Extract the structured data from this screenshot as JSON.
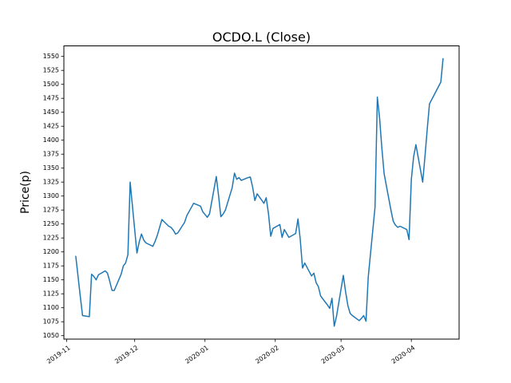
{
  "figure": {
    "title": "OCDO.L (Close)",
    "ylabel": "Price(p)"
  },
  "chart_data": {
    "type": "line",
    "title": "OCDO.L (Close)",
    "xlabel": "",
    "ylabel": "Price(p)",
    "series_name": "Close",
    "line_color": "#1f77b4",
    "background_color": "#ffffff",
    "grid": false,
    "legend_position": "none",
    "ylim": [
      1044,
      1569
    ],
    "yticks": [
      1050,
      1075,
      1100,
      1125,
      1150,
      1175,
      1200,
      1225,
      1250,
      1275,
      1300,
      1325,
      1350,
      1375,
      1400,
      1425,
      1450,
      1475,
      1500,
      1525,
      1550
    ],
    "xticks": [
      {
        "date": "2019-11-01",
        "label": "2019-11"
      },
      {
        "date": "2019-12-01",
        "label": "2019-12"
      },
      {
        "date": "2020-01-01",
        "label": "2020-01"
      },
      {
        "date": "2020-02-01",
        "label": "2020-02"
      },
      {
        "date": "2020-03-01",
        "label": "2020-03"
      },
      {
        "date": "2020-04-01",
        "label": "2020-04"
      }
    ],
    "x": [
      "2019-11-05",
      "2019-11-06",
      "2019-11-07",
      "2019-11-08",
      "2019-11-11",
      "2019-11-12",
      "2019-11-13",
      "2019-11-14",
      "2019-11-15",
      "2019-11-18",
      "2019-11-19",
      "2019-11-20",
      "2019-11-21",
      "2019-11-22",
      "2019-11-25",
      "2019-11-26",
      "2019-11-27",
      "2019-11-28",
      "2019-11-29",
      "2019-12-02",
      "2019-12-03",
      "2019-12-04",
      "2019-12-05",
      "2019-12-06",
      "2019-12-09",
      "2019-12-10",
      "2019-12-11",
      "2019-12-12",
      "2019-12-13",
      "2019-12-16",
      "2019-12-17",
      "2019-12-18",
      "2019-12-19",
      "2019-12-20",
      "2019-12-23",
      "2019-12-24",
      "2019-12-27",
      "2019-12-30",
      "2019-12-31",
      "2020-01-02",
      "2020-01-03",
      "2020-01-06",
      "2020-01-07",
      "2020-01-08",
      "2020-01-09",
      "2020-01-10",
      "2020-01-13",
      "2020-01-14",
      "2020-01-15",
      "2020-01-16",
      "2020-01-17",
      "2020-01-20",
      "2020-01-21",
      "2020-01-22",
      "2020-01-23",
      "2020-01-24",
      "2020-01-27",
      "2020-01-28",
      "2020-01-29",
      "2020-01-30",
      "2020-01-31",
      "2020-02-03",
      "2020-02-04",
      "2020-02-05",
      "2020-02-06",
      "2020-02-07",
      "2020-02-10",
      "2020-02-11",
      "2020-02-12",
      "2020-02-13",
      "2020-02-14",
      "2020-02-17",
      "2020-02-18",
      "2020-02-19",
      "2020-02-20",
      "2020-02-21",
      "2020-02-24",
      "2020-02-25",
      "2020-02-26",
      "2020-02-27",
      "2020-02-28",
      "2020-03-02",
      "2020-03-03",
      "2020-03-04",
      "2020-03-05",
      "2020-03-06",
      "2020-03-09",
      "2020-03-10",
      "2020-03-11",
      "2020-03-12",
      "2020-03-13",
      "2020-03-16",
      "2020-03-17",
      "2020-03-18",
      "2020-03-19",
      "2020-03-20",
      "2020-03-23",
      "2020-03-24",
      "2020-03-25",
      "2020-03-26",
      "2020-03-27",
      "2020-03-30",
      "2020-03-31",
      "2020-04-01",
      "2020-04-02",
      "2020-04-03",
      "2020-04-06",
      "2020-04-07",
      "2020-04-08",
      "2020-04-09",
      "2020-04-14",
      "2020-04-15"
    ],
    "values": [
      1192,
      1157,
      1121,
      1086,
      1084,
      1160,
      1156,
      1150,
      1159,
      1166,
      1162,
      1147,
      1131,
      1131,
      1160,
      1175,
      1180,
      1195,
      1325,
      1198,
      1218,
      1232,
      1221,
      1216,
      1210,
      1219,
      1230,
      1244,
      1258,
      1246,
      1244,
      1239,
      1232,
      1234,
      1253,
      1265,
      1287,
      1282,
      1272,
      1262,
      1268,
      1335,
      1300,
      1263,
      1268,
      1275,
      1315,
      1341,
      1330,
      1333,
      1328,
      1333,
      1334,
      1316,
      1292,
      1304,
      1287,
      1297,
      1268,
      1228,
      1242,
      1249,
      1226,
      1240,
      1233,
      1226,
      1233,
      1259,
      1223,
      1171,
      1180,
      1157,
      1162,
      1145,
      1138,
      1121,
      1105,
      1099,
      1117,
      1067,
      1085,
      1158,
      1129,
      1104,
      1090,
      1086,
      1077,
      1081,
      1086,
      1076,
      1155,
      1280,
      1477,
      1440,
      1385,
      1340,
      1275,
      1255,
      1248,
      1244,
      1246,
      1240,
      1222,
      1330,
      1370,
      1392,
      1325,
      1370,
      1420,
      1465,
      1504,
      1546
    ]
  }
}
